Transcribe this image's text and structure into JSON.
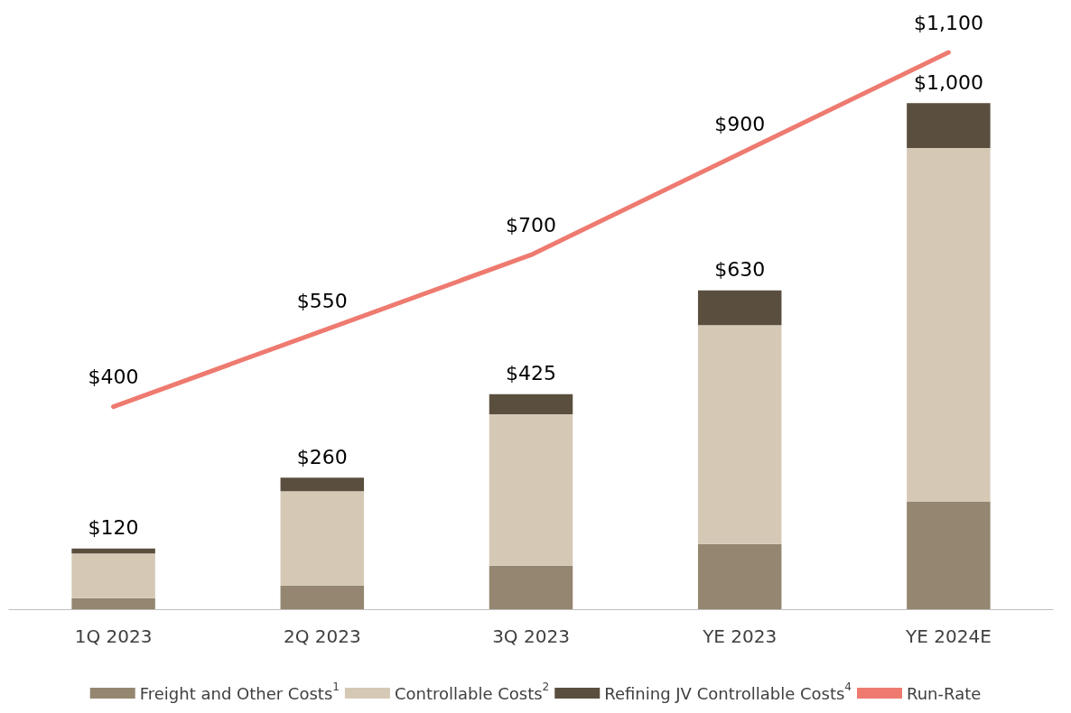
{
  "chart_data": {
    "type": "bar",
    "stacked": true,
    "categories": [
      "1Q 2023",
      "2Q 2023",
      "3Q 2023",
      "YE 2023",
      "YE 2024E"
    ],
    "series": [
      {
        "name": "Freight and Other Costs$^{1}$",
        "color": "#948670",
        "values": [
          22,
          47,
          86,
          129,
          212
        ]
      },
      {
        "name": "Controllable Costs$^{2}$",
        "color": "#d5c8b5",
        "values": [
          88,
          186,
          299,
          432,
          699
        ]
      },
      {
        "name": "Refining JV Controllable Costs$^{4}$",
        "color": "#5a4f3e",
        "values": [
          10,
          27,
          40,
          69,
          89
        ]
      },
      {
        "name": "Run-Rate",
        "type": "line",
        "color": "#ee7a70",
        "marker": "none",
        "values": [
          400,
          550,
          700,
          900,
          1100
        ],
        "value_labels": [
          "$400",
          "$550",
          "$700",
          "$900",
          "$1,100"
        ]
      }
    ],
    "totals": [
      "$120",
      "$260",
      "$425",
      "$630",
      "$1,000"
    ],
    "grid": false,
    "legend": "bottom",
    "tick_labels": "x"
  }
}
